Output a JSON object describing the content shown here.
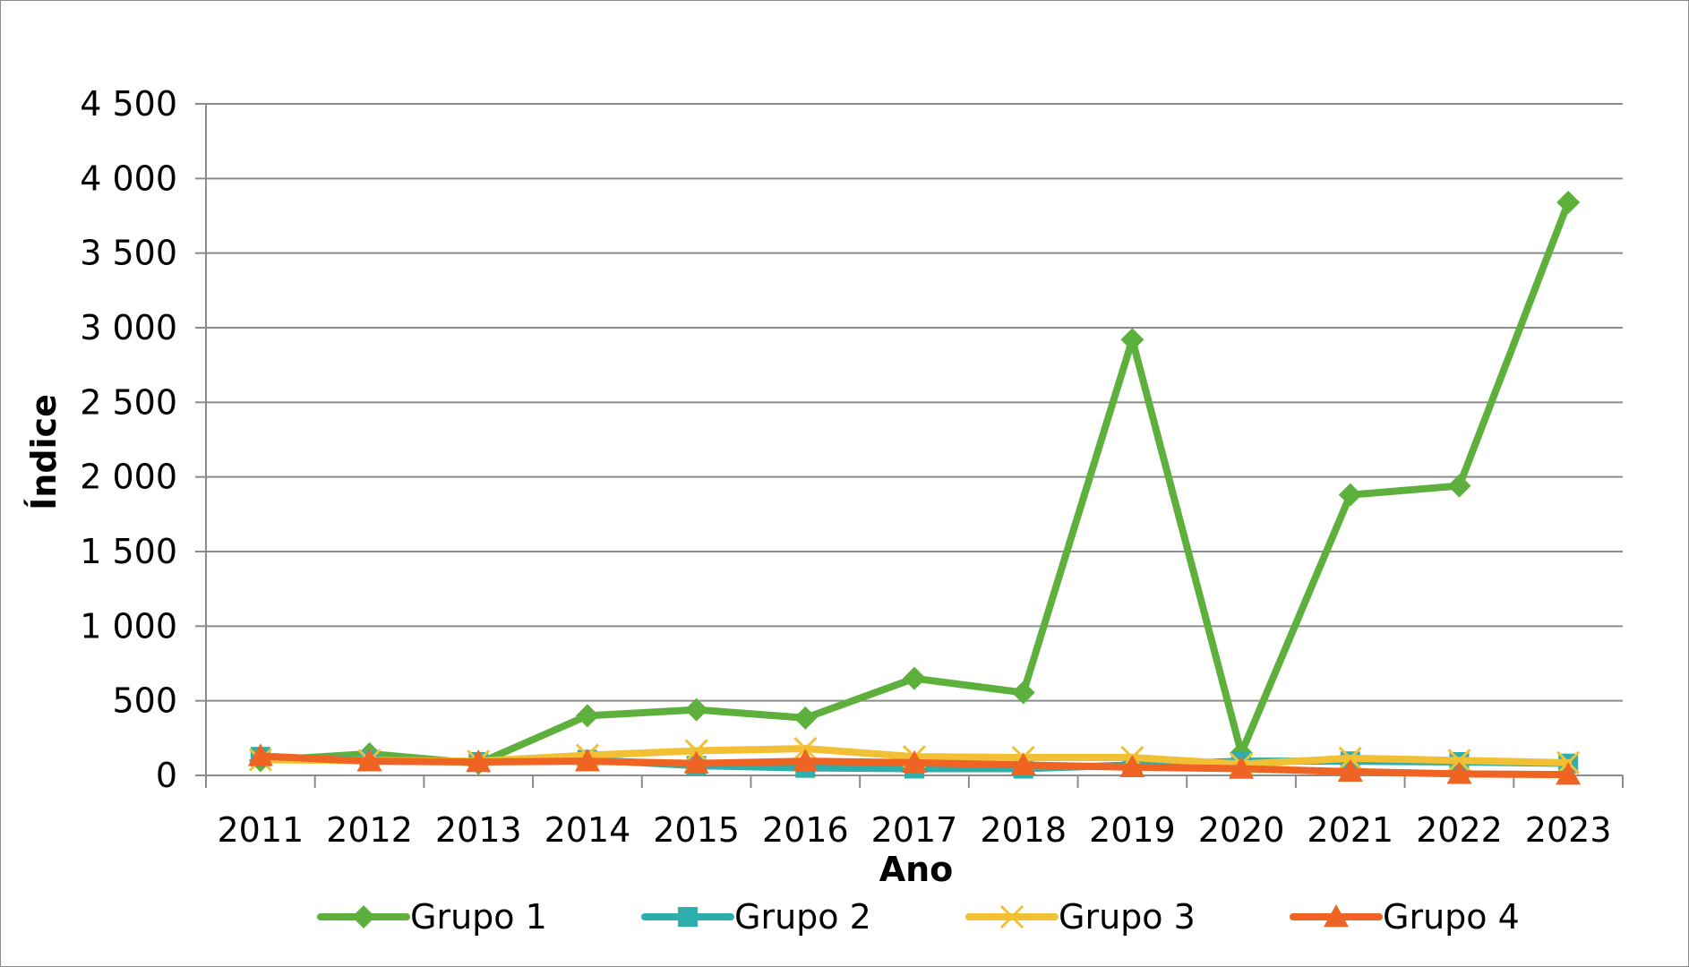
{
  "chart_data": {
    "type": "line",
    "title": "",
    "xlabel": "Ano",
    "ylabel": "Índice",
    "ylim": [
      0,
      4500
    ],
    "yticks": [
      {
        "value": 0,
        "label": "0"
      },
      {
        "value": 500,
        "label": "500"
      },
      {
        "value": 1000,
        "label": "1 000"
      },
      {
        "value": 1500,
        "label": "1 500"
      },
      {
        "value": 2000,
        "label": "2 000"
      },
      {
        "value": 2500,
        "label": "2 500"
      },
      {
        "value": 3000,
        "label": "3 000"
      },
      {
        "value": 3500,
        "label": "3 500"
      },
      {
        "value": 4000,
        "label": "4 000"
      },
      {
        "value": 4500,
        "label": "4 500"
      }
    ],
    "categories": [
      "2011",
      "2012",
      "2013",
      "2014",
      "2015",
      "2016",
      "2017",
      "2018",
      "2019",
      "2020",
      "2021",
      "2022",
      "2023"
    ],
    "grid": true,
    "legend_position": "bottom",
    "series": [
      {
        "name": "Grupo 1",
        "color": "#5DB03B",
        "marker": "diamond",
        "values": [
          100,
          145,
          80,
          400,
          440,
          385,
          650,
          555,
          2920,
          150,
          1880,
          1940,
          3840
        ]
      },
      {
        "name": "Grupo 2",
        "color": "#2EAFAD",
        "marker": "square",
        "values": [
          125,
          100,
          90,
          105,
          65,
          50,
          45,
          45,
          70,
          95,
          95,
          90,
          80
        ]
      },
      {
        "name": "Grupo 3",
        "color": "#F2C034",
        "marker": "x",
        "values": [
          105,
          100,
          95,
          135,
          165,
          180,
          125,
          120,
          120,
          75,
          115,
          100,
          85
        ]
      },
      {
        "name": "Grupo 4",
        "color": "#EF6422",
        "marker": "triangle",
        "values": [
          130,
          95,
          90,
          95,
          80,
          95,
          85,
          70,
          55,
          45,
          25,
          10,
          5
        ]
      }
    ]
  }
}
